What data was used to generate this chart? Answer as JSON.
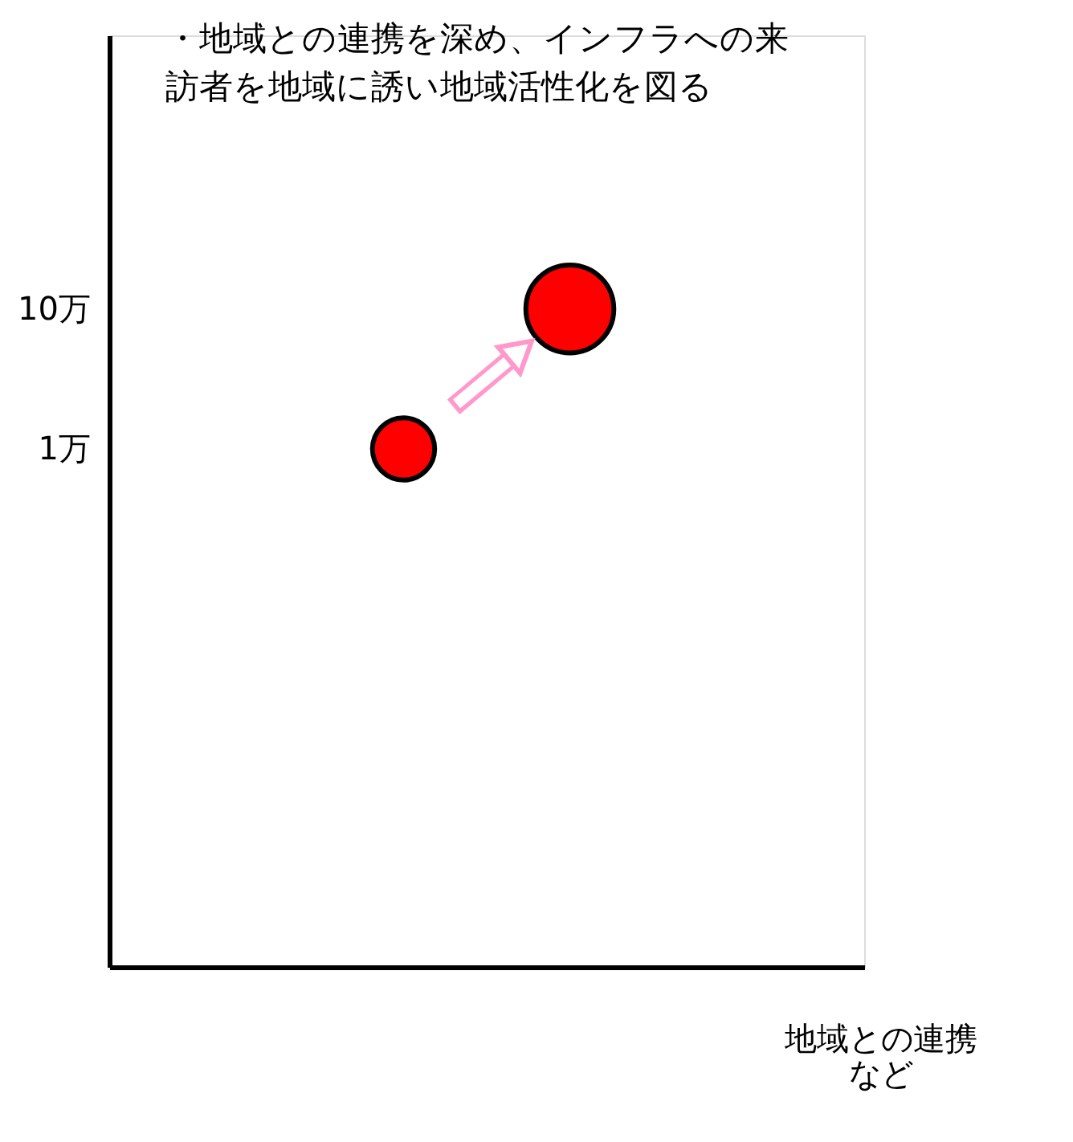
{
  "chart_data": {
    "type": "bubble",
    "categories": [
      null,
      null
    ],
    "series": [
      {
        "color": "#ff0000",
        "values": [
          1,
          10
        ],
        "sizes": [
          0.5,
          1
        ]
      }
    ],
    "ylim": [
      0.0002,
      900
    ],
    "log": "y",
    "yticks": [
      {
        "value": 1,
        "label": "1万"
      },
      {
        "value": 10,
        "label": "10万"
      }
    ],
    "tick_labels": "y",
    "grid": false,
    "xlabel": "地域との連携など",
    "annotations": [
      "・地域との連携を深め、インフラへの来訪者を地域に誘い地域活性化を図る"
    ]
  }
}
